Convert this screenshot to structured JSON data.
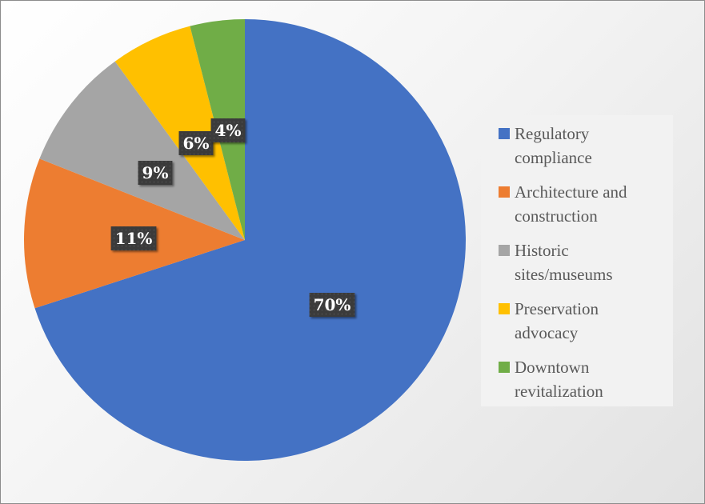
{
  "chart_data": {
    "type": "pie",
    "title": "",
    "start_angle_deg": 0,
    "direction": "clockwise",
    "categories": [
      "Regulatory compliance",
      "Architecture and construction",
      "Historic sites/museums",
      "Preservation advocacy",
      "Downtown revitalization"
    ],
    "values": [
      70,
      11,
      9,
      6,
      4
    ],
    "data_labels": [
      "70%",
      "11%",
      "9%",
      "6%",
      "4%"
    ],
    "colors": [
      "#4472C4",
      "#ED7D31",
      "#A5A5A5",
      "#FFC000",
      "#70AD47"
    ],
    "legend": {
      "position": "right",
      "entries": [
        {
          "line1": "Regulatory",
          "line2": "compliance"
        },
        {
          "line1": "Architecture and",
          "line2": "construction"
        },
        {
          "line1": "Historic",
          "line2": "sites/museums"
        },
        {
          "line1": "Preservation",
          "line2": "advocacy"
        },
        {
          "line1": "Downtown",
          "line2": "revitalization"
        }
      ]
    }
  }
}
